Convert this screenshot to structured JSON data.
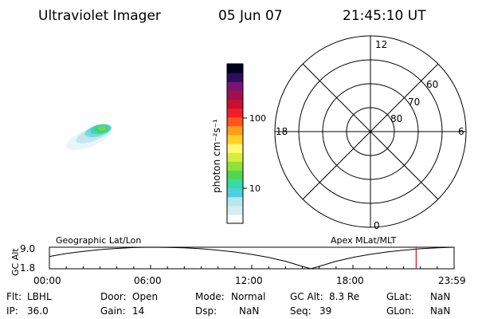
{
  "header": {
    "instrument": "Ultraviolet Imager",
    "date": "05 Jun 07",
    "time": "21:45:10 UT"
  },
  "colorbar": {
    "label": "photon cm⁻²s⁻¹",
    "tick_labels": [
      "100",
      "10"
    ],
    "colors": [
      "#ffffff",
      "#d4eef2",
      "#b8e6ee",
      "#4ecfe0",
      "#39d9a6",
      "#4fd84f",
      "#8fe23a",
      "#d6ee3a",
      "#fff870",
      "#ffd02a",
      "#ff9e1a",
      "#ff5520",
      "#ee1f2a",
      "#c8102e",
      "#a0104c",
      "#7a1470",
      "#2a0f5c",
      "#000020"
    ]
  },
  "polar": {
    "mlt_labels": [
      "12",
      "18",
      "6",
      "0"
    ],
    "lat_labels": [
      "60",
      "70",
      "80"
    ]
  },
  "image_blob": {
    "colors": [
      "#e8f6f8",
      "#bfe8ee",
      "#7ad8e0",
      "#3fd2c8",
      "#3bd673",
      "#6fdb4a"
    ]
  },
  "chart_data": {
    "type": "line",
    "title": "",
    "left_label": "Geographic Lat/Lon",
    "right_label": "Apex MLat/MLT",
    "ylabel": "GC Alt",
    "ytick_labels": [
      "9.0",
      "1.8"
    ],
    "ylim": [
      1.8,
      9.0
    ],
    "xtick_labels": [
      "00:00",
      "06:00",
      "12:00",
      "18:00",
      "23:59"
    ],
    "xlim_hours": [
      0,
      24
    ],
    "series": [
      {
        "x": [
          0,
          1,
          2,
          3,
          4,
          5,
          6,
          7,
          8,
          9,
          10,
          11,
          12,
          13,
          14,
          15,
          15.5,
          16,
          17,
          18,
          19,
          20,
          21,
          22,
          23,
          24
        ],
        "y": [
          5.9,
          6.9,
          7.6,
          8.2,
          8.6,
          8.9,
          9.0,
          8.95,
          8.8,
          8.5,
          8.0,
          7.4,
          6.6,
          5.6,
          4.3,
          2.6,
          1.8,
          2.6,
          4.3,
          5.6,
          6.6,
          7.4,
          8.0,
          8.5,
          8.8,
          9.0
        ]
      }
    ],
    "current_time_hours": 21.75,
    "marker_color": "#ff0000"
  },
  "status": {
    "flt_label": "Flt:",
    "flt_value": "LBHL",
    "ip_label": "IP:",
    "ip_value": "36.0",
    "door_label": "Door:",
    "door_value": "Open",
    "gain_label": "Gain:",
    "gain_value": "14",
    "mode_label": "Mode:",
    "mode_value": "Normal",
    "dsp_label": "Dsp:",
    "dsp_value": "NaN",
    "gcalt_label": "GC Alt:",
    "gcalt_value": "8.3 Re",
    "seq_label": "Seq:",
    "seq_value": "39",
    "glat_label": "GLat:",
    "glat_value": "NaN",
    "glon_label": "GLon:",
    "glon_value": "NaN"
  }
}
